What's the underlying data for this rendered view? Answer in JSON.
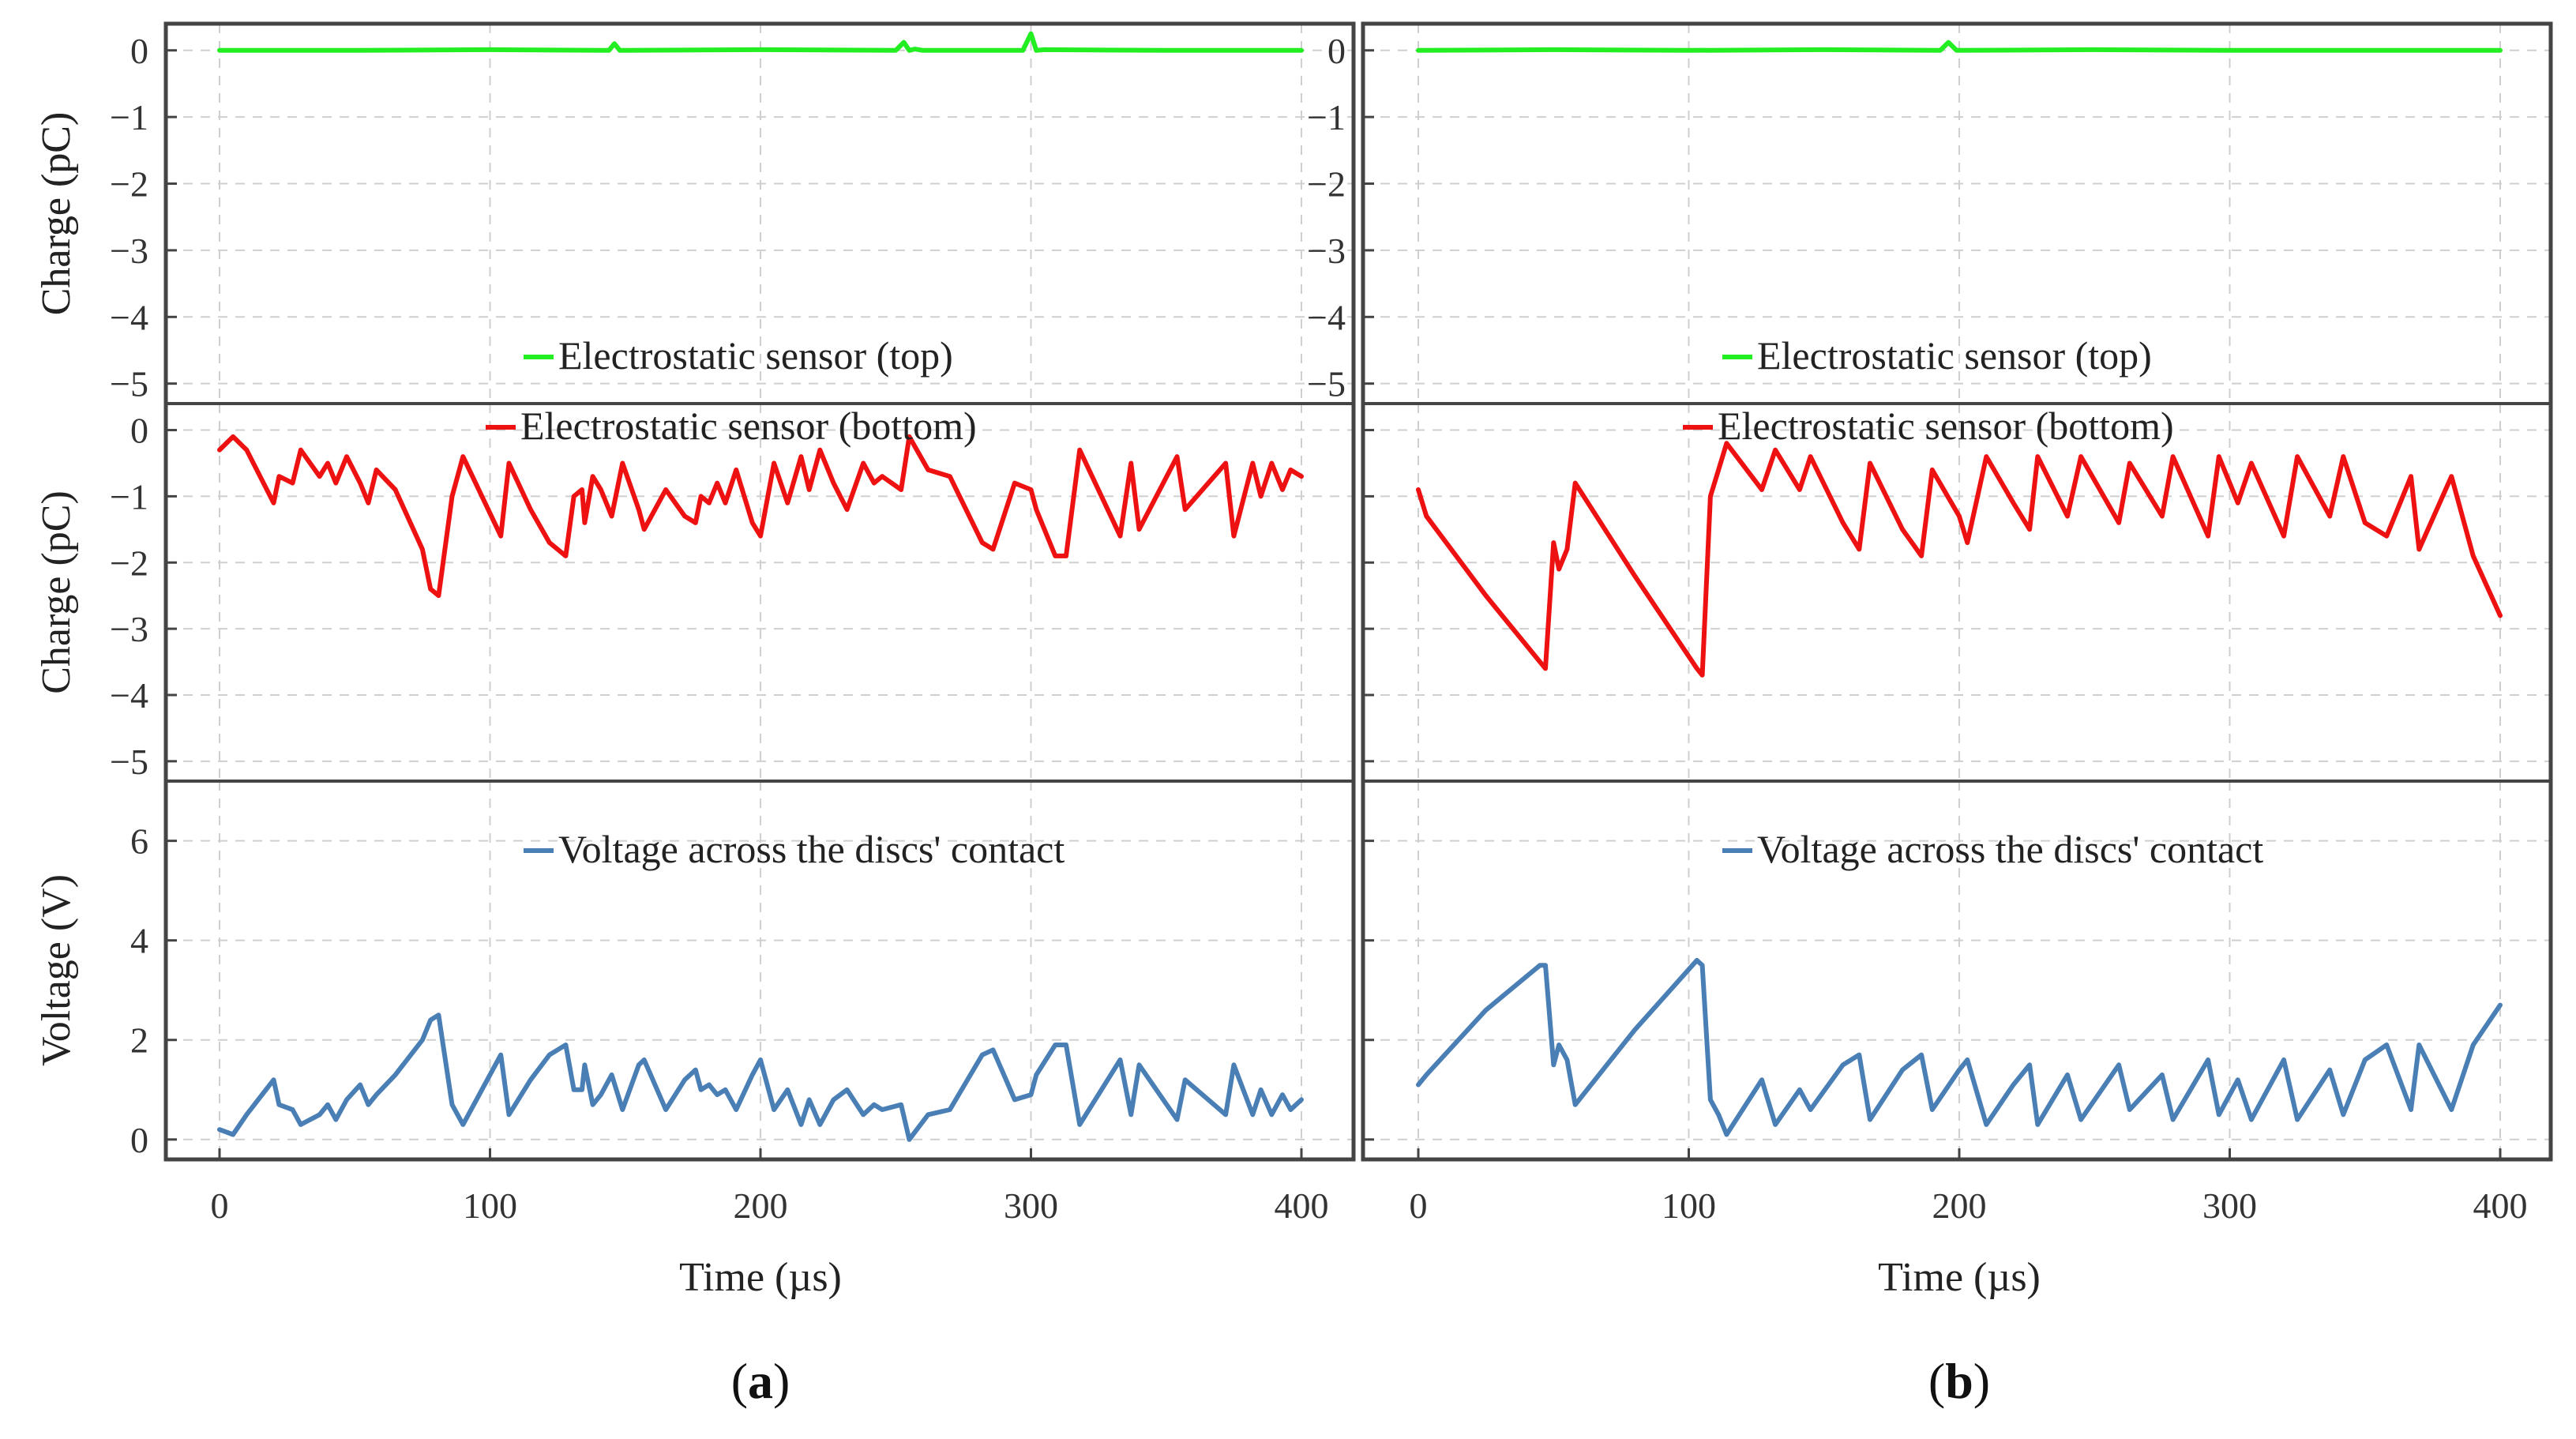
{
  "chart_data": [
    {
      "label": "(a)",
      "label_letter": "a",
      "type": "line",
      "xlabel": "Time (µs)",
      "xlim": [
        0,
        400
      ],
      "xticks": [
        0,
        100,
        200,
        300,
        400
      ],
      "panels": [
        {
          "name": "top",
          "ylabel": "Charge (pC)",
          "ylim": [
            -5.3,
            0.4
          ],
          "yticks": [
            0,
            -1,
            -2,
            -3,
            -4,
            -5
          ],
          "ytick_labels": [
            "0",
            "−1",
            "−2",
            "−3",
            "−4",
            "−5"
          ],
          "series": [
            {
              "name": "Electrostatic sensor (top)",
              "color": "#22ee22",
              "x": [
                0,
                50,
                100,
                144,
                146,
                148,
                150,
                200,
                250,
                253,
                255,
                257,
                260,
                297,
                300,
                302,
                305,
                350,
                400
              ],
              "y": [
                0.0,
                0.0,
                0.01,
                0.0,
                0.1,
                0.0,
                0.0,
                0.01,
                0.0,
                0.12,
                0.0,
                0.02,
                0.0,
                0.0,
                0.25,
                0.0,
                0.01,
                0.0,
                0.0
              ]
            }
          ]
        },
        {
          "name": "middle",
          "ylabel": "Charge (pC)",
          "ylim": [
            -5.3,
            0.4
          ],
          "yticks": [
            0,
            -1,
            -2,
            -3,
            -4,
            -5
          ],
          "ytick_labels": [
            "0",
            "−1",
            "−2",
            "−3",
            "−4",
            "−5"
          ],
          "series": [
            {
              "name": "Electrostatic sensor (bottom)",
              "color": "#ee1111",
              "x": [
                0,
                5,
                10,
                20,
                22,
                27,
                30,
                37,
                40,
                43,
                47,
                52,
                55,
                58,
                65,
                75,
                78,
                81,
                86,
                90,
                104,
                107,
                115,
                122,
                128,
                131,
                134,
                135,
                138,
                141,
                145,
                149,
                155,
                157,
                165,
                172,
                176,
                178,
                181,
                184,
                187,
                191,
                197,
                200,
                205,
                210,
                215,
                218,
                222,
                227,
                232,
                238,
                242,
                245,
                252,
                255,
                262,
                270,
                282,
                286,
                294,
                300,
                302,
                309,
                313,
                318,
                333,
                337,
                340,
                354,
                357,
                372,
                375,
                382,
                385,
                389,
                393,
                396,
                400
              ],
              "y": [
                -0.3,
                -0.1,
                -0.3,
                -1.1,
                -0.7,
                -0.8,
                -0.3,
                -0.7,
                -0.5,
                -0.8,
                -0.4,
                -0.8,
                -1.1,
                -0.6,
                -0.9,
                -1.8,
                -2.4,
                -2.5,
                -1.0,
                -0.4,
                -1.6,
                -0.5,
                -1.2,
                -1.7,
                -1.9,
                -1.0,
                -0.9,
                -1.4,
                -0.7,
                -0.9,
                -1.3,
                -0.5,
                -1.2,
                -1.5,
                -0.9,
                -1.3,
                -1.4,
                -1.0,
                -1.1,
                -0.8,
                -1.1,
                -0.6,
                -1.4,
                -1.6,
                -0.5,
                -1.1,
                -0.4,
                -0.9,
                -0.3,
                -0.8,
                -1.2,
                -0.5,
                -0.8,
                -0.7,
                -0.9,
                -0.1,
                -0.6,
                -0.7,
                -1.7,
                -1.8,
                -0.8,
                -0.9,
                -1.2,
                -1.9,
                -1.9,
                -0.3,
                -1.6,
                -0.5,
                -1.5,
                -0.4,
                -1.2,
                -0.5,
                -1.6,
                -0.5,
                -1.0,
                -0.5,
                -0.9,
                -0.6,
                -0.7
              ]
            }
          ]
        },
        {
          "name": "bottom",
          "ylabel": "Voltage (V)",
          "ylim": [
            -0.4,
            7.2
          ],
          "yticks": [
            0,
            2,
            4,
            6
          ],
          "ytick_labels": [
            "0",
            "2",
            "4",
            "6"
          ],
          "series": [
            {
              "name": "Voltage across the discs' contact",
              "color": "#4a7fb5",
              "x": [
                0,
                5,
                10,
                20,
                22,
                27,
                30,
                37,
                40,
                43,
                47,
                52,
                55,
                58,
                65,
                75,
                78,
                81,
                86,
                90,
                104,
                107,
                115,
                122,
                128,
                131,
                134,
                135,
                138,
                141,
                145,
                149,
                155,
                157,
                165,
                172,
                176,
                178,
                181,
                184,
                187,
                191,
                197,
                200,
                205,
                210,
                215,
                218,
                222,
                227,
                232,
                238,
                242,
                245,
                252,
                255,
                262,
                270,
                282,
                286,
                294,
                300,
                302,
                309,
                313,
                318,
                333,
                337,
                340,
                354,
                357,
                372,
                375,
                382,
                385,
                389,
                393,
                396,
                400
              ],
              "y": [
                0.2,
                0.1,
                0.5,
                1.2,
                0.7,
                0.6,
                0.3,
                0.5,
                0.7,
                0.4,
                0.8,
                1.1,
                0.7,
                0.9,
                1.3,
                2.0,
                2.4,
                2.5,
                0.7,
                0.3,
                1.7,
                0.5,
                1.2,
                1.7,
                1.9,
                1.0,
                1.0,
                1.5,
                0.7,
                0.9,
                1.3,
                0.6,
                1.5,
                1.6,
                0.6,
                1.2,
                1.4,
                1.0,
                1.1,
                0.9,
                1.0,
                0.6,
                1.3,
                1.6,
                0.6,
                1.0,
                0.3,
                0.8,
                0.3,
                0.8,
                1.0,
                0.5,
                0.7,
                0.6,
                0.7,
                0.0,
                0.5,
                0.6,
                1.7,
                1.8,
                0.8,
                0.9,
                1.3,
                1.9,
                1.9,
                0.3,
                1.6,
                0.5,
                1.5,
                0.4,
                1.2,
                0.5,
                1.5,
                0.5,
                1.0,
                0.5,
                0.9,
                0.6,
                0.8
              ]
            }
          ]
        }
      ]
    },
    {
      "label": "(b)",
      "label_letter": "b",
      "type": "line",
      "xlabel": "Time (µs)",
      "xlim": [
        0,
        400
      ],
      "xticks": [
        0,
        100,
        200,
        300,
        400
      ],
      "panels": [
        {
          "name": "top",
          "ylabel": "Charge (pC)",
          "ylim": [
            -5.3,
            0.4
          ],
          "yticks": [
            0,
            -1,
            -2,
            -3,
            -4,
            -5
          ],
          "ytick_labels": [
            "0",
            "−1",
            "−2",
            "−3",
            "−4",
            "−5"
          ],
          "series": [
            {
              "name": "Electrostatic sensor (top)",
              "color": "#22ee22",
              "x": [
                0,
                50,
                100,
                150,
                193,
                196,
                199,
                250,
                300,
                350,
                400
              ],
              "y": [
                0.0,
                0.01,
                0.0,
                0.01,
                0.0,
                0.12,
                0.0,
                0.01,
                0.0,
                0.0,
                0.0
              ]
            }
          ]
        },
        {
          "name": "middle",
          "ylabel": "",
          "ylim": [
            -5.3,
            0.4
          ],
          "yticks": [
            0,
            -1,
            -2,
            -3,
            -4,
            -5
          ],
          "ytick_labels": [],
          "series": [
            {
              "name": "Electrostatic sensor (bottom)",
              "color": "#ee1111",
              "x": [
                0,
                3,
                25,
                45,
                47,
                50,
                52,
                55,
                58,
                80,
                103,
                105,
                108,
                111,
                114,
                127,
                132,
                141,
                145,
                157,
                163,
                167,
                179,
                186,
                190,
                200,
                203,
                210,
                220,
                226,
                229,
                240,
                245,
                259,
                263,
                275,
                279,
                292,
                296,
                303,
                308,
                320,
                325,
                337,
                342,
                350,
                358,
                367,
                370,
                382,
                390,
                400
              ],
              "y": [
                -0.9,
                -1.3,
                -2.5,
                -3.5,
                -3.6,
                -1.7,
                -2.1,
                -1.8,
                -0.8,
                -2.2,
                -3.6,
                -3.7,
                -1.0,
                -0.6,
                -0.2,
                -0.9,
                -0.3,
                -0.9,
                -0.4,
                -1.4,
                -1.8,
                -0.5,
                -1.5,
                -1.9,
                -0.6,
                -1.3,
                -1.7,
                -0.4,
                -1.1,
                -1.5,
                -0.4,
                -1.3,
                -0.4,
                -1.4,
                -0.5,
                -1.3,
                -0.4,
                -1.6,
                -0.4,
                -1.1,
                -0.5,
                -1.6,
                -0.4,
                -1.3,
                -0.4,
                -1.4,
                -1.6,
                -0.7,
                -1.8,
                -0.7,
                -1.9,
                -2.8
              ]
            }
          ]
        },
        {
          "name": "bottom",
          "ylabel": "",
          "ylim": [
            -0.4,
            7.2
          ],
          "yticks": [
            0,
            2,
            4,
            6
          ],
          "ytick_labels": [],
          "series": [
            {
              "name": "Voltage across the discs' contact",
              "color": "#4a7fb5",
              "x": [
                0,
                3,
                25,
                45,
                47,
                50,
                52,
                55,
                58,
                80,
                103,
                105,
                108,
                111,
                114,
                127,
                132,
                141,
                145,
                157,
                163,
                167,
                179,
                186,
                190,
                200,
                203,
                210,
                220,
                226,
                229,
                240,
                245,
                259,
                263,
                275,
                279,
                292,
                296,
                303,
                308,
                320,
                325,
                337,
                342,
                350,
                358,
                367,
                370,
                382,
                390,
                400
              ],
              "y": [
                1.1,
                1.3,
                2.6,
                3.5,
                3.5,
                1.5,
                1.9,
                1.6,
                0.7,
                2.2,
                3.6,
                3.5,
                0.8,
                0.5,
                0.1,
                1.2,
                0.3,
                1.0,
                0.6,
                1.5,
                1.7,
                0.4,
                1.4,
                1.7,
                0.6,
                1.4,
                1.6,
                0.3,
                1.1,
                1.5,
                0.3,
                1.3,
                0.4,
                1.5,
                0.6,
                1.3,
                0.4,
                1.6,
                0.5,
                1.2,
                0.4,
                1.6,
                0.4,
                1.4,
                0.5,
                1.6,
                1.9,
                0.6,
                1.9,
                0.6,
                1.9,
                2.7
              ]
            }
          ]
        }
      ]
    }
  ]
}
